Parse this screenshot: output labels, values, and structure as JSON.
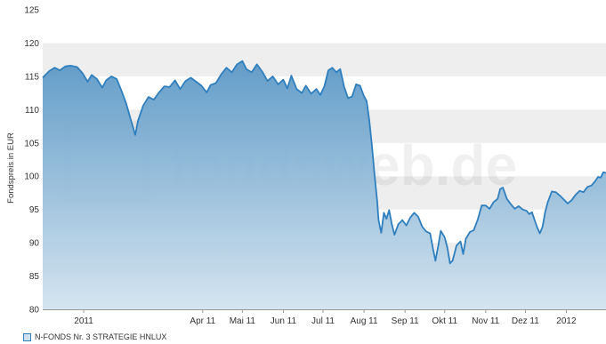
{
  "chart_data": {
    "type": "area",
    "title": "",
    "xlabel": "",
    "ylabel": "Fondspreis in EUR",
    "ylim": [
      80,
      125
    ],
    "yticks": [
      80,
      85,
      90,
      95,
      100,
      105,
      110,
      115,
      120,
      125
    ],
    "xlim": [
      "2010-12-01",
      "2012-01-31"
    ],
    "xticks": [
      {
        "date": "2011-01-01",
        "label": "2011"
      },
      {
        "date": "2011-04-01",
        "label": "Apr 11"
      },
      {
        "date": "2011-05-01",
        "label": "Mai 11"
      },
      {
        "date": "2011-06-01",
        "label": "Jun 11"
      },
      {
        "date": "2011-07-01",
        "label": "Jul 11"
      },
      {
        "date": "2011-08-01",
        "label": "Aug 11"
      },
      {
        "date": "2011-09-01",
        "label": "Sep 11"
      },
      {
        "date": "2011-10-01",
        "label": "Okt 11"
      },
      {
        "date": "2011-11-01",
        "label": "Nov 11"
      },
      {
        "date": "2011-12-01",
        "label": "Dez 11"
      },
      {
        "date": "2012-01-01",
        "label": "2012"
      }
    ],
    "grid": "horizontal bands",
    "legend_position": "bottom-left",
    "series": [
      {
        "name": "N-FONDS Nr. 3 STRATEGIE HNLUX",
        "color": "#2f7fbe",
        "points": [
          [
            "2010-12-01",
            114.8
          ],
          [
            "2010-12-06",
            115.8
          ],
          [
            "2010-12-10",
            116.3
          ],
          [
            "2010-12-14",
            115.9
          ],
          [
            "2010-12-18",
            116.5
          ],
          [
            "2010-12-22",
            116.6
          ],
          [
            "2010-12-27",
            116.4
          ],
          [
            "2010-12-31",
            115.5
          ],
          [
            "2011-01-04",
            114.2
          ],
          [
            "2011-01-07",
            115.2
          ],
          [
            "2011-01-11",
            114.6
          ],
          [
            "2011-01-15",
            113.3
          ],
          [
            "2011-01-18",
            114.4
          ],
          [
            "2011-01-22",
            115.0
          ],
          [
            "2011-01-26",
            114.6
          ],
          [
            "2011-01-30",
            112.6
          ],
          [
            "2011-02-02",
            111.0
          ],
          [
            "2011-02-06",
            108.2
          ],
          [
            "2011-02-09",
            106.2
          ],
          [
            "2011-02-11",
            108.3
          ],
          [
            "2011-02-15",
            110.6
          ],
          [
            "2011-02-19",
            111.9
          ],
          [
            "2011-02-23",
            111.5
          ],
          [
            "2011-02-27",
            112.6
          ],
          [
            "2011-03-03",
            113.5
          ],
          [
            "2011-03-07",
            113.4
          ],
          [
            "2011-03-11",
            114.4
          ],
          [
            "2011-03-15",
            113.1
          ],
          [
            "2011-03-19",
            114.3
          ],
          [
            "2011-03-23",
            114.8
          ],
          [
            "2011-03-27",
            114.2
          ],
          [
            "2011-03-31",
            113.6
          ],
          [
            "2011-04-04",
            112.6
          ],
          [
            "2011-04-07",
            113.7
          ],
          [
            "2011-04-11",
            114.0
          ],
          [
            "2011-04-15",
            115.3
          ],
          [
            "2011-04-19",
            116.3
          ],
          [
            "2011-04-23",
            115.6
          ],
          [
            "2011-04-27",
            116.8
          ],
          [
            "2011-05-01",
            117.3
          ],
          [
            "2011-05-04",
            116.1
          ],
          [
            "2011-05-08",
            115.6
          ],
          [
            "2011-05-12",
            116.8
          ],
          [
            "2011-05-16",
            115.7
          ],
          [
            "2011-05-20",
            114.3
          ],
          [
            "2011-05-24",
            115.0
          ],
          [
            "2011-05-28",
            113.8
          ],
          [
            "2011-06-01",
            114.5
          ],
          [
            "2011-06-04",
            113.2
          ],
          [
            "2011-06-07",
            115.1
          ],
          [
            "2011-06-11",
            113.1
          ],
          [
            "2011-06-15",
            112.5
          ],
          [
            "2011-06-18",
            113.6
          ],
          [
            "2011-06-22",
            112.4
          ],
          [
            "2011-06-26",
            113.1
          ],
          [
            "2011-06-29",
            112.2
          ],
          [
            "2011-07-02",
            113.5
          ],
          [
            "2011-07-05",
            115.9
          ],
          [
            "2011-07-08",
            116.3
          ],
          [
            "2011-07-11",
            115.6
          ],
          [
            "2011-07-14",
            116.1
          ],
          [
            "2011-07-17",
            113.4
          ],
          [
            "2011-07-20",
            111.7
          ],
          [
            "2011-07-23",
            112.0
          ],
          [
            "2011-07-26",
            113.8
          ],
          [
            "2011-07-29",
            113.6
          ],
          [
            "2011-08-01",
            112.0
          ],
          [
            "2011-08-03",
            111.3
          ],
          [
            "2011-08-05",
            108.4
          ],
          [
            "2011-08-07",
            104.5
          ],
          [
            "2011-08-09",
            100.1
          ],
          [
            "2011-08-11",
            96.2
          ],
          [
            "2011-08-12",
            93.4
          ],
          [
            "2011-08-14",
            91.5
          ],
          [
            "2011-08-16",
            94.5
          ],
          [
            "2011-08-18",
            93.6
          ],
          [
            "2011-08-20",
            94.9
          ],
          [
            "2011-08-22",
            92.8
          ],
          [
            "2011-08-24",
            91.2
          ],
          [
            "2011-08-27",
            92.8
          ],
          [
            "2011-08-30",
            93.4
          ],
          [
            "2011-09-02",
            92.6
          ],
          [
            "2011-09-05",
            93.8
          ],
          [
            "2011-09-08",
            94.5
          ],
          [
            "2011-09-11",
            93.9
          ],
          [
            "2011-09-14",
            92.4
          ],
          [
            "2011-09-17",
            91.7
          ],
          [
            "2011-09-20",
            91.4
          ],
          [
            "2011-09-22",
            89.3
          ],
          [
            "2011-09-24",
            87.3
          ],
          [
            "2011-09-26",
            89.4
          ],
          [
            "2011-09-28",
            91.8
          ],
          [
            "2011-10-01",
            90.8
          ],
          [
            "2011-10-03",
            89.3
          ],
          [
            "2011-10-05",
            86.9
          ],
          [
            "2011-10-07",
            87.3
          ],
          [
            "2011-10-10",
            89.6
          ],
          [
            "2011-10-13",
            90.2
          ],
          [
            "2011-10-15",
            88.3
          ],
          [
            "2011-10-17",
            90.6
          ],
          [
            "2011-10-20",
            91.6
          ],
          [
            "2011-10-23",
            91.9
          ],
          [
            "2011-10-26",
            93.5
          ],
          [
            "2011-10-29",
            95.6
          ],
          [
            "2011-11-01",
            95.6
          ],
          [
            "2011-11-04",
            95.1
          ],
          [
            "2011-11-07",
            96.1
          ],
          [
            "2011-11-10",
            96.6
          ],
          [
            "2011-11-12",
            98.1
          ],
          [
            "2011-11-14",
            98.3
          ],
          [
            "2011-11-17",
            96.6
          ],
          [
            "2011-11-20",
            95.8
          ],
          [
            "2011-11-23",
            95.1
          ],
          [
            "2011-11-26",
            95.5
          ],
          [
            "2011-11-29",
            95.0
          ],
          [
            "2011-12-02",
            94.8
          ],
          [
            "2011-12-04",
            94.3
          ],
          [
            "2011-12-06",
            94.6
          ],
          [
            "2011-12-08",
            93.4
          ],
          [
            "2011-12-10",
            92.3
          ],
          [
            "2011-12-12",
            91.4
          ],
          [
            "2011-12-14",
            92.4
          ],
          [
            "2011-12-16",
            94.6
          ],
          [
            "2011-12-18",
            96.1
          ],
          [
            "2011-12-21",
            97.7
          ],
          [
            "2011-12-24",
            97.6
          ],
          [
            "2011-12-27",
            97.1
          ],
          [
            "2011-12-30",
            96.5
          ],
          [
            "2012-01-02",
            95.9
          ],
          [
            "2012-01-05",
            96.4
          ],
          [
            "2012-01-08",
            97.2
          ],
          [
            "2012-01-11",
            97.8
          ],
          [
            "2012-01-14",
            97.6
          ],
          [
            "2012-01-17",
            98.4
          ],
          [
            "2012-01-20",
            98.6
          ],
          [
            "2012-01-23",
            99.3
          ],
          [
            "2012-01-25",
            99.9
          ],
          [
            "2012-01-27",
            99.8
          ],
          [
            "2012-01-29",
            100.6
          ],
          [
            "2012-01-31",
            100.5
          ]
        ]
      }
    ]
  },
  "legend": {
    "label": "N-FONDS Nr. 3 STRATEGIE HNLUX"
  },
  "watermark": "fondsweb.de"
}
